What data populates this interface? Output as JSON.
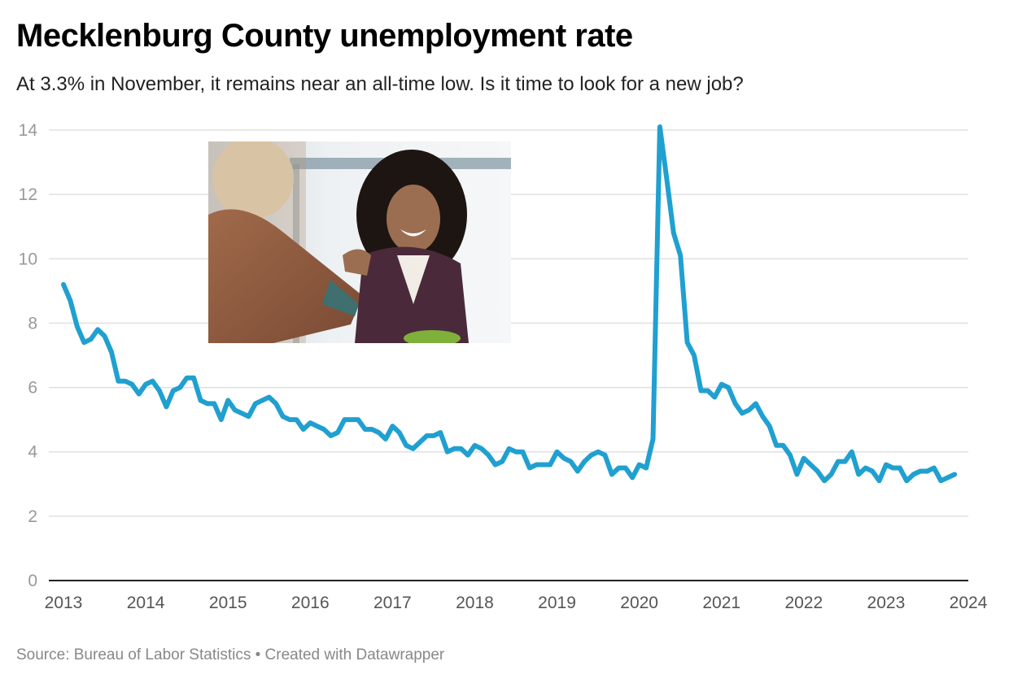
{
  "header": {
    "title": "Mecklenburg County unemployment rate",
    "subtitle": "At 3.3% in November, it remains near an all-time low. Is it time to look for a new job?"
  },
  "footer": {
    "source": "Source: Bureau of Labor Statistics • Created with Datawrapper"
  },
  "image": {
    "description_icon": "photo-handshake"
  },
  "colors": {
    "line": "#20a0d0",
    "grid": "#e0e0e0",
    "tick_text": "#999999",
    "axis": "#222222"
  },
  "chart_data": {
    "type": "line",
    "title": "Mecklenburg County unemployment rate",
    "subtitle": "At 3.3% in November, it remains near an all-time low. Is it time to look for a new job?",
    "xlabel": "",
    "ylabel": "",
    "ylim": [
      0,
      14
    ],
    "xlim": [
      2013,
      2024
    ],
    "grid": true,
    "y_ticks": [
      0,
      2,
      4,
      6,
      8,
      10,
      12,
      14
    ],
    "x_ticks": [
      2013,
      2014,
      2015,
      2016,
      2017,
      2018,
      2019,
      2020,
      2021,
      2022,
      2023,
      2024
    ],
    "x_tick_labels": [
      "2013",
      "2014",
      "2015",
      "2016",
      "2017",
      "2018",
      "2019",
      "2020",
      "2021",
      "2022",
      "2023",
      "2024"
    ],
    "y_tick_labels": [
      "0",
      "2",
      "4",
      "6",
      "8",
      "10",
      "12",
      "14"
    ],
    "series": [
      {
        "values_by_year": {
          "2013": [
            9.2,
            8.7,
            7.9,
            7.4,
            7.5,
            7.8,
            7.6,
            7.1,
            6.2,
            6.2,
            6.1,
            5.8
          ],
          "2014": [
            6.1,
            6.2,
            5.9,
            5.4,
            5.9,
            6.0,
            6.3,
            6.3,
            5.6,
            5.5,
            5.5,
            5.0
          ],
          "2015": [
            5.6,
            5.3,
            5.2,
            5.1,
            5.5,
            5.6,
            5.7,
            5.5,
            5.1,
            5.0,
            5.0,
            4.7
          ],
          "2016": [
            4.9,
            4.8,
            4.7,
            4.5,
            4.6,
            5.0,
            5.0,
            5.0,
            4.7,
            4.7,
            4.6,
            4.4
          ],
          "2017": [
            4.8,
            4.6,
            4.2,
            4.1,
            4.3,
            4.5,
            4.5,
            4.6,
            4.0,
            4.1,
            4.1,
            3.9
          ],
          "2018": [
            4.2,
            4.1,
            3.9,
            3.6,
            3.7,
            4.1,
            4.0,
            4.0,
            3.5,
            3.6,
            3.6,
            3.6
          ],
          "2019": [
            4.0,
            3.8,
            3.7,
            3.4,
            3.7,
            3.9,
            4.0,
            3.9,
            3.3,
            3.5,
            3.5,
            3.2
          ],
          "2020": [
            3.6,
            3.5,
            4.4,
            14.1,
            12.5,
            10.8,
            10.1,
            7.4,
            7.0,
            5.9,
            5.9,
            5.7
          ],
          "2021": [
            6.1,
            6.0,
            5.5,
            5.2,
            5.3,
            5.5,
            5.1,
            4.8,
            4.2,
            4.2,
            3.9,
            3.3
          ],
          "2022": [
            3.8,
            3.6,
            3.4,
            3.1,
            3.3,
            3.7,
            3.7,
            4.0,
            3.3,
            3.5,
            3.4,
            3.1
          ],
          "2023": [
            3.6,
            3.5,
            3.5,
            3.1,
            3.3,
            3.4,
            3.4,
            3.5,
            3.1,
            3.2,
            3.3
          ]
        }
      }
    ]
  }
}
